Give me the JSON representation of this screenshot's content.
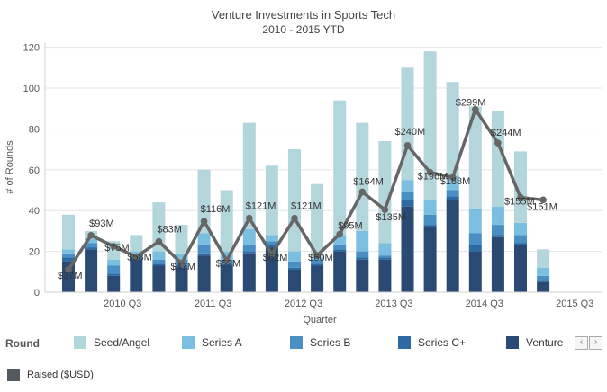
{
  "chart_data": {
    "type": "bar",
    "stacked": true,
    "title": "Venture Investments in Sports Tech",
    "subtitle": "2010 - 2015 YTD",
    "xlabel": "Quarter",
    "ylabel": "# of Rounds",
    "ylim": [
      0,
      120
    ],
    "yticks": [
      0,
      20,
      40,
      60,
      80,
      100,
      120
    ],
    "grid": true,
    "x_tick_labels": [
      {
        "label": "2010 Q3",
        "category_index": 2
      },
      {
        "label": "2011 Q3",
        "category_index": 6
      },
      {
        "label": "2012 Q3",
        "category_index": 10
      },
      {
        "label": "2013 Q3",
        "category_index": 14
      },
      {
        "label": "2014 Q3",
        "category_index": 18
      },
      {
        "label": "2015 Q3",
        "category_index": 22
      }
    ],
    "categories": [
      "2010 Q1",
      "2010 Q2",
      "2010 Q3",
      "2010 Q4",
      "2011 Q1",
      "2011 Q2",
      "2011 Q3",
      "2011 Q4",
      "2012 Q1",
      "2012 Q2",
      "2012 Q3",
      "2012 Q4",
      "2013 Q1",
      "2013 Q2",
      "2013 Q3",
      "2013 Q4",
      "2014 Q1",
      "2014 Q2",
      "2014 Q3",
      "2014 Q4",
      "2015 Q1",
      "2015 Q2"
    ],
    "series": [
      {
        "name": "Venture",
        "color": "#2a4a73",
        "values": [
          15,
          21,
          8,
          16,
          13,
          12,
          18,
          13,
          19,
          22,
          11,
          13,
          20,
          16,
          16,
          42,
          32,
          45,
          20,
          27,
          23,
          5
        ]
      },
      {
        "name": "Series C+",
        "color": "#2c6aa3",
        "values": [
          2,
          1,
          1,
          1,
          1,
          1,
          1,
          1,
          1,
          1,
          1,
          1,
          1,
          1,
          1,
          3,
          1,
          2,
          3,
          1,
          1,
          1
        ]
      },
      {
        "name": "Series B",
        "color": "#4a8fc4",
        "values": [
          2,
          2,
          4,
          2,
          2,
          3,
          4,
          2,
          3,
          2,
          3,
          2,
          2,
          3,
          1,
          4,
          5,
          3,
          6,
          5,
          4,
          2
        ]
      },
      {
        "name": "Series A",
        "color": "#7bbfe0",
        "values": [
          2,
          2,
          3,
          1,
          4,
          3,
          6,
          4,
          8,
          3,
          5,
          1,
          5,
          10,
          6,
          6,
          7,
          7,
          12,
          9,
          6,
          4
        ]
      },
      {
        "name": "Seed/Angel",
        "color": "#b3d6dd",
        "values": [
          17,
          4,
          9,
          8,
          24,
          14,
          31,
          30,
          52,
          34,
          50,
          36,
          66,
          53,
          50,
          55,
          73,
          46,
          50,
          47,
          35,
          9
        ]
      }
    ],
    "line_series": {
      "name": "Raised ($USD)",
      "color": "#666666",
      "values": [
        37,
        93,
        75,
        58,
        83,
        47,
        116,
        52,
        121,
        62,
        121,
        60,
        95,
        164,
        135,
        240,
        196,
        188,
        299,
        244,
        155,
        151
      ],
      "labels": [
        "$37M",
        "$93M",
        "$75M",
        "$58M",
        "$83M",
        "$47M",
        "$116M",
        "$52M",
        "$121M",
        "$62M",
        "$121M",
        "$60M",
        "$95M",
        "$164M",
        "$135M",
        "$240M",
        "$196M",
        "$188M",
        "$299M",
        "$244M",
        "$155M",
        "$151M"
      ]
    },
    "legend": {
      "position": "bottom",
      "title": "Round",
      "entries": [
        "Seed/Angel",
        "Series A",
        "Series B",
        "Series C+",
        "Venture"
      ],
      "line_entry": "Raised ($USD)"
    }
  },
  "legend_nav": {
    "prev": "‹",
    "next": "›"
  }
}
